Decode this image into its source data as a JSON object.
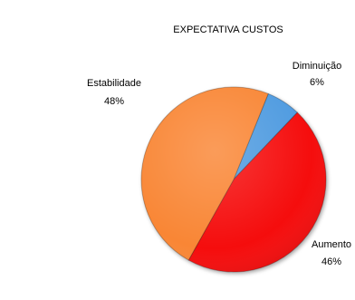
{
  "chart_data": {
    "type": "pie",
    "title": "EXPECTATIVA CUSTOS",
    "slices": [
      {
        "name": "Diminuição",
        "value": 6,
        "label": "6%",
        "color": "#4f9be0"
      },
      {
        "name": "Aumento",
        "value": 46,
        "label": "46%",
        "color": "#f50f0f"
      },
      {
        "name": "Estabilidade",
        "value": 48,
        "label": "48%",
        "color": "#f98634"
      }
    ],
    "legend": "none"
  }
}
